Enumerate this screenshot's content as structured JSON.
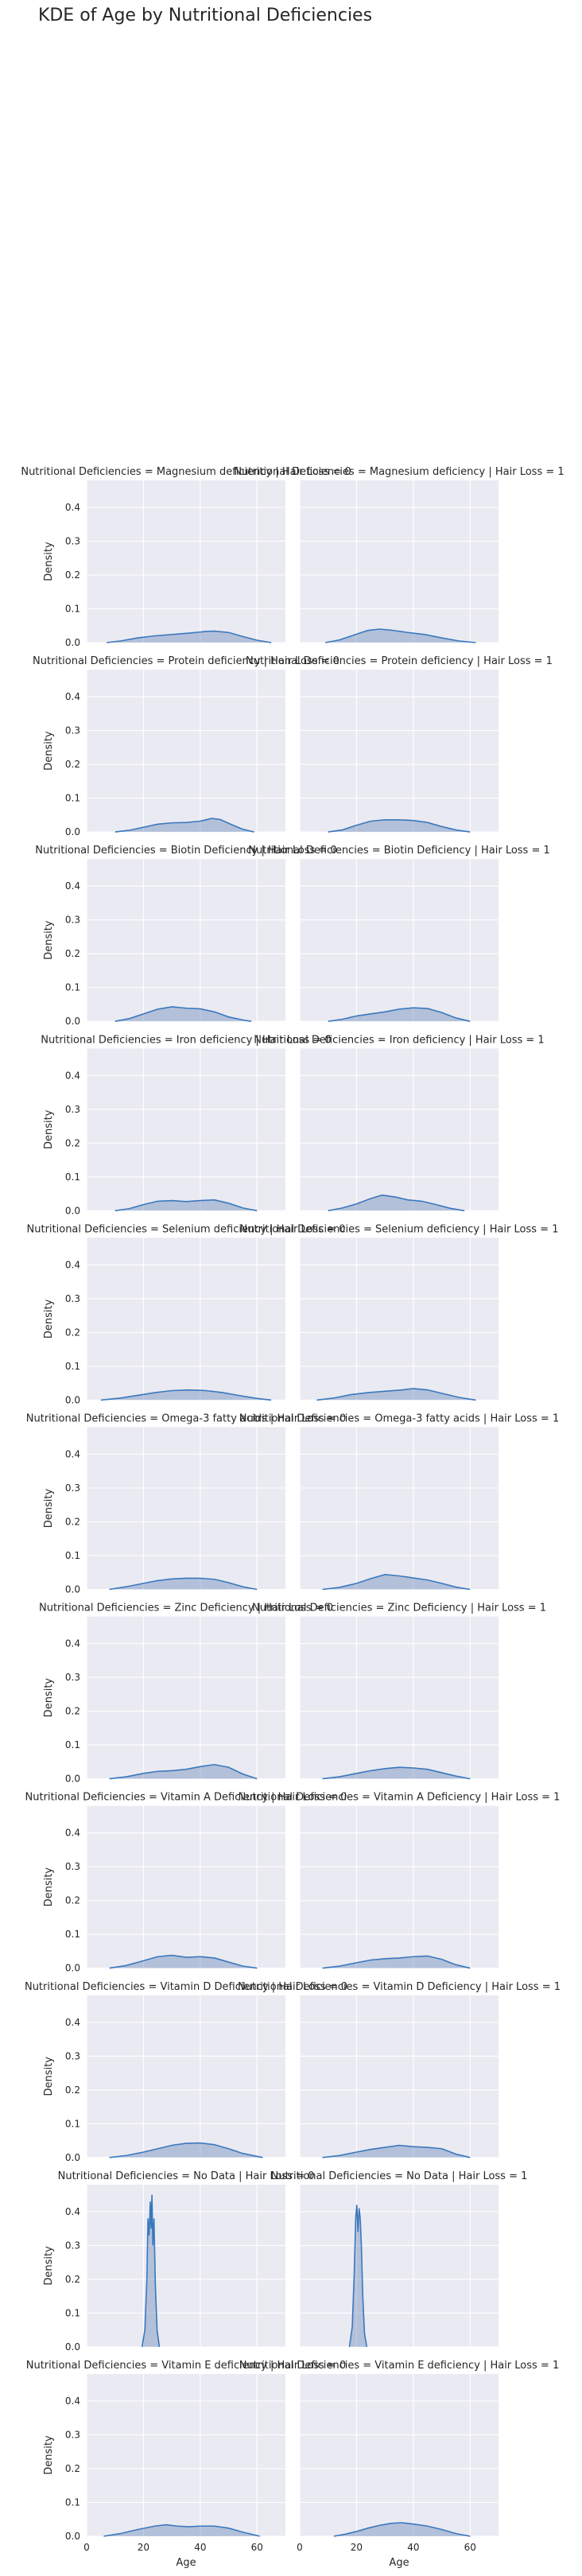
{
  "chart_data": {
    "type": "area",
    "title": "KDE of Age by Nutritional Deficiencies",
    "row_variable": "Nutritional Deficiencies",
    "col_variable": "Hair Loss",
    "columns": [
      0,
      1
    ],
    "xlabel": "Age",
    "ylabel": "Density",
    "xlim": [
      0,
      70
    ],
    "ylim": [
      0,
      0.48
    ],
    "xticks": [
      0,
      20,
      40,
      60
    ],
    "xtick_labels": [
      "0",
      "20",
      "40",
      "60"
    ],
    "yticks": [
      0.0,
      0.1,
      0.2,
      0.3,
      0.4
    ],
    "ytick_labels": [
      "0.0",
      "0.1",
      "0.2",
      "0.3",
      "0.4"
    ],
    "grid": true,
    "color": "#4c72b0",
    "panels": [
      {
        "title": "Nutritional Deficiencies = Magnesium deficiency | Hair Loss = 0",
        "row": 0,
        "col": 0,
        "x": [
          7,
          12,
          18,
          24,
          30,
          36,
          42,
          45,
          50,
          55,
          60,
          65
        ],
        "y": [
          0,
          0.005,
          0.014,
          0.02,
          0.024,
          0.028,
          0.033,
          0.034,
          0.03,
          0.018,
          0.007,
          0
        ]
      },
      {
        "title": "Nutritional Deficiencies = Magnesium deficiency | Hair Loss = 1",
        "row": 0,
        "col": 1,
        "x": [
          9,
          14,
          20,
          24,
          28,
          32,
          38,
          44,
          50,
          56,
          62
        ],
        "y": [
          0,
          0.008,
          0.025,
          0.036,
          0.04,
          0.037,
          0.03,
          0.024,
          0.014,
          0.005,
          0
        ]
      },
      {
        "title": "Nutritional Deficiencies = Protein deficiency | Hair Loss = 0",
        "row": 1,
        "col": 0,
        "x": [
          10,
          15,
          20,
          25,
          30,
          35,
          40,
          44,
          47,
          51,
          55,
          59
        ],
        "y": [
          0,
          0.005,
          0.014,
          0.023,
          0.027,
          0.028,
          0.032,
          0.04,
          0.037,
          0.022,
          0.008,
          0
        ]
      },
      {
        "title": "Nutritional Deficiencies = Protein deficiency | Hair Loss = 1",
        "row": 1,
        "col": 1,
        "x": [
          10,
          15,
          20,
          25,
          30,
          35,
          40,
          45,
          50,
          55,
          60
        ],
        "y": [
          0,
          0.006,
          0.02,
          0.032,
          0.036,
          0.036,
          0.034,
          0.028,
          0.016,
          0.006,
          0
        ]
      },
      {
        "title": "Nutritional Deficiencies = Biotin Deficiency  | Hair Loss = 0",
        "row": 2,
        "col": 0,
        "x": [
          10,
          15,
          20,
          25,
          30,
          35,
          40,
          45,
          50,
          55,
          58
        ],
        "y": [
          0,
          0.008,
          0.022,
          0.036,
          0.043,
          0.039,
          0.037,
          0.028,
          0.013,
          0.004,
          0
        ]
      },
      {
        "title": "Nutritional Deficiencies = Biotin Deficiency  | Hair Loss = 1",
        "row": 2,
        "col": 1,
        "x": [
          10,
          15,
          20,
          25,
          30,
          35,
          40,
          45,
          50,
          55,
          60
        ],
        "y": [
          0,
          0.006,
          0.016,
          0.022,
          0.028,
          0.036,
          0.04,
          0.038,
          0.026,
          0.01,
          0
        ]
      },
      {
        "title": "Nutritional Deficiencies = Iron deficiency | Hair Loss = 0",
        "row": 3,
        "col": 0,
        "x": [
          10,
          15,
          20,
          25,
          30,
          35,
          40,
          45,
          50,
          55,
          60
        ],
        "y": [
          0,
          0.006,
          0.018,
          0.028,
          0.03,
          0.027,
          0.03,
          0.032,
          0.022,
          0.008,
          0
        ]
      },
      {
        "title": "Nutritional Deficiencies = Iron deficiency | Hair Loss = 1",
        "row": 3,
        "col": 1,
        "x": [
          10,
          15,
          20,
          25,
          29,
          34,
          38,
          43,
          48,
          53,
          58
        ],
        "y": [
          0,
          0.008,
          0.02,
          0.036,
          0.046,
          0.04,
          0.032,
          0.028,
          0.018,
          0.007,
          0
        ]
      },
      {
        "title": "Nutritional Deficiencies = Selenium deficiency | Hair Loss = 0",
        "row": 4,
        "col": 0,
        "x": [
          5,
          12,
          18,
          24,
          30,
          36,
          42,
          48,
          54,
          60,
          65
        ],
        "y": [
          0,
          0.006,
          0.014,
          0.022,
          0.028,
          0.03,
          0.028,
          0.022,
          0.013,
          0.005,
          0
        ]
      },
      {
        "title": "Nutritional Deficiencies = Selenium deficiency | Hair Loss = 1",
        "row": 4,
        "col": 1,
        "x": [
          6,
          12,
          18,
          24,
          30,
          36,
          40,
          45,
          50,
          56,
          62
        ],
        "y": [
          0,
          0.006,
          0.016,
          0.022,
          0.026,
          0.03,
          0.034,
          0.03,
          0.02,
          0.008,
          0
        ]
      },
      {
        "title": "Nutritional Deficiencies = Omega-3 fatty acids | Hair Loss = 0",
        "row": 5,
        "col": 0,
        "x": [
          8,
          14,
          20,
          25,
          30,
          35,
          40,
          45,
          50,
          55,
          60
        ],
        "y": [
          0,
          0.008,
          0.018,
          0.026,
          0.031,
          0.033,
          0.033,
          0.03,
          0.02,
          0.008,
          0
        ]
      },
      {
        "title": "Nutritional Deficiencies = Omega-3 fatty acids | Hair Loss = 1",
        "row": 5,
        "col": 1,
        "x": [
          8,
          14,
          20,
          25,
          30,
          35,
          40,
          45,
          50,
          55,
          60
        ],
        "y": [
          0,
          0.006,
          0.018,
          0.032,
          0.044,
          0.04,
          0.034,
          0.028,
          0.018,
          0.007,
          0
        ]
      },
      {
        "title": "Nutritional Deficiencies = Zinc Deficiency | Hair Loss = 0",
        "row": 6,
        "col": 0,
        "x": [
          8,
          14,
          20,
          25,
          30,
          35,
          40,
          45,
          50,
          55,
          60
        ],
        "y": [
          0,
          0.006,
          0.016,
          0.022,
          0.024,
          0.028,
          0.036,
          0.042,
          0.034,
          0.014,
          0
        ]
      },
      {
        "title": "Nutritional Deficiencies = Zinc Deficiency | Hair Loss = 1",
        "row": 6,
        "col": 1,
        "x": [
          8,
          14,
          20,
          25,
          30,
          35,
          40,
          45,
          50,
          55,
          60
        ],
        "y": [
          0,
          0.006,
          0.016,
          0.024,
          0.03,
          0.034,
          0.032,
          0.028,
          0.018,
          0.008,
          0
        ]
      },
      {
        "title": "Nutritional Deficiencies = Vitamin A Deficiency | Hair Loss = 0",
        "row": 7,
        "col": 0,
        "x": [
          8,
          14,
          20,
          25,
          30,
          35,
          40,
          45,
          50,
          55,
          60
        ],
        "y": [
          0,
          0.008,
          0.022,
          0.034,
          0.038,
          0.032,
          0.034,
          0.03,
          0.018,
          0.006,
          0
        ]
      },
      {
        "title": "Nutritional Deficiencies = Vitamin A Deficiency | Hair Loss = 1",
        "row": 7,
        "col": 1,
        "x": [
          8,
          14,
          20,
          25,
          30,
          35,
          40,
          45,
          50,
          55,
          60
        ],
        "y": [
          0,
          0.006,
          0.016,
          0.024,
          0.028,
          0.03,
          0.034,
          0.036,
          0.026,
          0.01,
          0
        ]
      },
      {
        "title": "Nutritional Deficiencies = Vitamin D Deficiency | Hair Loss = 0",
        "row": 8,
        "col": 0,
        "x": [
          8,
          14,
          20,
          25,
          30,
          35,
          40,
          45,
          50,
          55,
          62
        ],
        "y": [
          0,
          0.006,
          0.016,
          0.026,
          0.036,
          0.042,
          0.043,
          0.038,
          0.026,
          0.012,
          0
        ]
      },
      {
        "title": "Nutritional Deficiencies = Vitamin D Deficiency | Hair Loss = 1",
        "row": 8,
        "col": 1,
        "x": [
          8,
          14,
          20,
          25,
          30,
          35,
          40,
          45,
          50,
          55,
          60
        ],
        "y": [
          0,
          0.006,
          0.016,
          0.024,
          0.03,
          0.036,
          0.032,
          0.03,
          0.026,
          0.01,
          0
        ]
      },
      {
        "title": "Nutritional Deficiencies = No Data | Hair Loss = 0",
        "row": 9,
        "col": 0,
        "x": [
          19.5,
          20.5,
          21.2,
          21.6,
          22.0,
          22.4,
          22.7,
          23.0,
          23.3,
          23.7,
          24.2,
          24.8,
          25.6
        ],
        "y": [
          0,
          0.05,
          0.2,
          0.38,
          0.33,
          0.43,
          0.35,
          0.45,
          0.3,
          0.38,
          0.18,
          0.05,
          0
        ]
      },
      {
        "title": "Nutritional Deficiencies = No Data | Hair Loss = 1",
        "row": 9,
        "col": 1,
        "x": [
          17.5,
          18.5,
          19.2,
          19.7,
          20.1,
          20.5,
          20.9,
          21.3,
          21.7,
          22.2,
          22.8,
          23.6
        ],
        "y": [
          0,
          0.06,
          0.22,
          0.38,
          0.42,
          0.34,
          0.41,
          0.38,
          0.3,
          0.15,
          0.04,
          0
        ]
      },
      {
        "title": "Nutritional Deficiencies = Vitamin E deficiency | Hair Loss = 0",
        "row": 10,
        "col": 0,
        "x": [
          6,
          12,
          18,
          24,
          28,
          32,
          36,
          40,
          45,
          50,
          55,
          61
        ],
        "y": [
          0,
          0.008,
          0.02,
          0.03,
          0.034,
          0.03,
          0.028,
          0.03,
          0.03,
          0.024,
          0.012,
          0
        ]
      },
      {
        "title": "Nutritional Deficiencies = Vitamin E deficiency | Hair Loss = 1",
        "row": 10,
        "col": 1,
        "x": [
          12,
          16,
          20,
          24,
          28,
          32,
          36,
          40,
          45,
          50,
          55,
          60
        ],
        "y": [
          0,
          0.006,
          0.014,
          0.024,
          0.032,
          0.038,
          0.04,
          0.036,
          0.03,
          0.02,
          0.008,
          0
        ]
      }
    ]
  }
}
